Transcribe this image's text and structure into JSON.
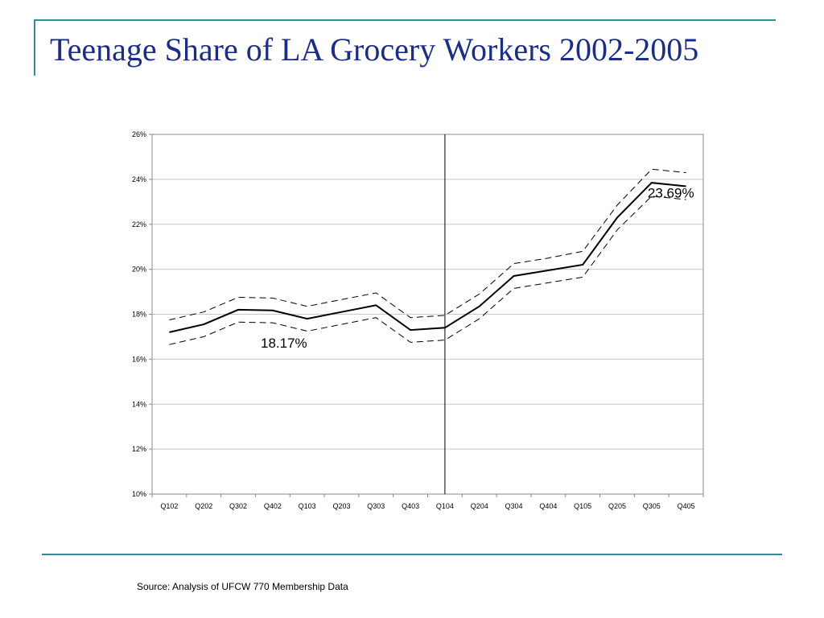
{
  "title": "Teenage Share of LA Grocery Workers 2002-2005",
  "source": "Source: Analysis of UFCW 770 Membership Data",
  "colors": {
    "accent": "#2d8f9b",
    "title": "#1a2d8c",
    "series": "#000000"
  },
  "chart_data": {
    "type": "line",
    "categories": [
      "Q102",
      "Q202",
      "Q302",
      "Q402",
      "Q103",
      "Q203",
      "Q303",
      "Q403",
      "Q104",
      "Q204",
      "Q304",
      "Q404",
      "Q105",
      "Q205",
      "Q305",
      "Q405"
    ],
    "series": [
      {
        "style": "solid",
        "values": [
          17.2,
          17.55,
          18.2,
          18.17,
          17.8,
          18.1,
          18.4,
          17.3,
          17.4,
          18.35,
          19.7,
          19.95,
          20.2,
          22.3,
          23.85,
          23.69
        ]
      },
      {
        "style": "dashed",
        "values": [
          17.75,
          18.1,
          18.75,
          18.72,
          18.35,
          18.65,
          18.95,
          17.85,
          17.95,
          18.9,
          20.25,
          20.5,
          20.8,
          22.85,
          24.45,
          24.3
        ]
      },
      {
        "style": "dashed",
        "values": [
          16.65,
          17.0,
          17.65,
          17.62,
          17.25,
          17.55,
          17.85,
          16.75,
          16.85,
          17.8,
          19.15,
          19.4,
          19.65,
          21.75,
          23.25,
          23.1
        ]
      }
    ],
    "ylim": [
      10,
      26
    ],
    "yticks": [
      "10%",
      "12%",
      "14%",
      "16%",
      "18%",
      "20%",
      "22%",
      "24%",
      "26%"
    ],
    "grid": true,
    "vertical_marker_category": "Q104",
    "annotations": [
      {
        "text": "18.17%",
        "category": "Q402"
      },
      {
        "text": "23.69%",
        "category": "Q405"
      }
    ]
  }
}
